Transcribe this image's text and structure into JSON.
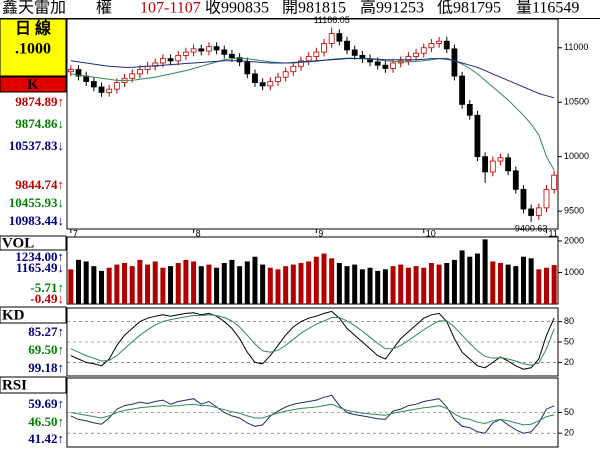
{
  "header": {
    "items": [
      {
        "text": "鑫天雷加",
        "color": "#000000"
      },
      {
        "text": "權",
        "color": "#000000"
      },
      {
        "text": "107-1107",
        "color": "#c00000"
      },
      {
        "text": "收990835",
        "color": "#000000"
      },
      {
        "text": "開981815",
        "color": "#000000"
      },
      {
        "text": "高991253",
        "color": "#000000"
      },
      {
        "text": "低981795",
        "color": "#000000"
      },
      {
        "text": "量116549",
        "color": "#000000"
      }
    ]
  },
  "sidebar": {
    "period": "日 線",
    "interval": ".1000"
  },
  "chart_data": [
    {
      "type": "candlestick",
      "title": "K",
      "up_color": "#c00000",
      "down_color": "#000000",
      "open": [
        10780,
        10800,
        10740,
        10690,
        10640,
        10590,
        10620,
        10680,
        10720,
        10760,
        10800,
        10830,
        10860,
        10900,
        10880,
        10930,
        10960,
        10990,
        10970,
        11010,
        10980,
        10940,
        10910,
        10870,
        10760,
        10680,
        10650,
        10690,
        10730,
        10780,
        10830,
        10880,
        10920,
        10960,
        11040,
        11130,
        11060,
        10980,
        10930,
        10900,
        10870,
        10840,
        10810,
        10860,
        10880,
        10920,
        10950,
        11000,
        11040,
        11060,
        10990,
        10740,
        10480,
        10380,
        10000,
        9860,
        9960,
        9990,
        9870,
        9700,
        9520,
        9460,
        9530,
        9700
      ],
      "high": [
        10840,
        10840,
        10780,
        10730,
        10680,
        10660,
        10720,
        10760,
        10800,
        10840,
        10870,
        10900,
        10940,
        10940,
        10970,
        11000,
        11030,
        11030,
        11050,
        11050,
        11020,
        10980,
        10950,
        10910,
        10800,
        10720,
        10730,
        10770,
        10820,
        10870,
        10920,
        10960,
        11000,
        11080,
        11186.05,
        11170,
        11100,
        11020,
        10970,
        10940,
        10910,
        10880,
        10900,
        10920,
        10960,
        10990,
        11040,
        11080,
        11100,
        11100,
        11030,
        10780,
        10520,
        10420,
        10040,
        10000,
        10030,
        10030,
        9910,
        9740,
        9560,
        9570,
        9740,
        9870
      ],
      "low": [
        10740,
        10700,
        10650,
        10600,
        10550,
        10550,
        10580,
        10640,
        10680,
        10720,
        10760,
        10790,
        10820,
        10840,
        10840,
        10890,
        10920,
        10930,
        10930,
        10940,
        10900,
        10870,
        10830,
        10720,
        10640,
        10610,
        10610,
        10650,
        10690,
        10740,
        10790,
        10840,
        10880,
        10920,
        11000,
        11020,
        10940,
        10890,
        10860,
        10830,
        10800,
        10770,
        10770,
        10820,
        10840,
        10880,
        10910,
        10960,
        11000,
        10950,
        10700,
        10440,
        10340,
        9960,
        9760,
        9820,
        9920,
        9830,
        9660,
        9480,
        9400.63,
        9420,
        9490,
        9660
      ],
      "close": [
        10800,
        10740,
        10690,
        10640,
        10590,
        10620,
        10680,
        10720,
        10760,
        10800,
        10830,
        10860,
        10900,
        10880,
        10930,
        10960,
        10990,
        10970,
        11010,
        10980,
        10940,
        10910,
        10870,
        10760,
        10680,
        10650,
        10690,
        10730,
        10780,
        10830,
        10880,
        10920,
        10960,
        11040,
        11130,
        11060,
        10980,
        10930,
        10900,
        10870,
        10840,
        10810,
        10860,
        10880,
        10920,
        10950,
        11000,
        11040,
        11060,
        10990,
        10740,
        10480,
        10380,
        10000,
        9860,
        9960,
        9990,
        9870,
        9700,
        9520,
        9460,
        9530,
        9700,
        9830
      ],
      "series": [
        {
          "color": "#2e8b57",
          "values": [
            10760,
            10750,
            10740,
            10730,
            10720,
            10710,
            10700,
            10700,
            10700,
            10710,
            10720,
            10730,
            10745,
            10760,
            10775,
            10790,
            10810,
            10830,
            10850,
            10870,
            10890,
            10900,
            10905,
            10900,
            10890,
            10880,
            10870,
            10865,
            10860,
            10860,
            10865,
            10870,
            10875,
            10885,
            10895,
            10900,
            10905,
            10905,
            10900,
            10895,
            10890,
            10880,
            10875,
            10870,
            10870,
            10875,
            10880,
            10890,
            10900,
            10905,
            10880,
            10850,
            10810,
            10760,
            10700,
            10640,
            10580,
            10520,
            10450,
            10380,
            10300,
            10200,
            10000,
            9875
          ]
        },
        {
          "color": "#1f2a8a",
          "values": [
            10880,
            10870,
            10860,
            10850,
            10840,
            10830,
            10825,
            10820,
            10820,
            10825,
            10830,
            10835,
            10840,
            10845,
            10850,
            10855,
            10860,
            10865,
            10870,
            10875,
            10880,
            10880,
            10880,
            10875,
            10870,
            10865,
            10860,
            10860,
            10860,
            10865,
            10870,
            10875,
            10880,
            10885,
            10890,
            10895,
            10900,
            10900,
            10900,
            10900,
            10895,
            10890,
            10890,
            10890,
            10890,
            10890,
            10895,
            10900,
            10900,
            10895,
            10880,
            10860,
            10840,
            10820,
            10790,
            10760,
            10730,
            10700,
            10670,
            10640,
            10610,
            10580,
            10560,
            10540
          ]
        }
      ],
      "ylim": [
        9336,
        11264
      ],
      "yticks": [
        9500,
        10000,
        10500,
        11000
      ],
      "xticks": [
        {
          "value": 0,
          "label": "7"
        },
        {
          "value": 16,
          "label": "8"
        },
        {
          "value": 32,
          "label": "9"
        },
        {
          "value": 46,
          "label": "10"
        },
        {
          "value": 62,
          "label": "11"
        }
      ],
      "readouts": [
        {
          "text": "9874.89↑",
          "color": "#c00000"
        },
        {
          "text": "9874.86↓",
          "color": "#008000"
        },
        {
          "text": "10537.83↓",
          "color": "#000080"
        },
        {
          "text": "9844.74↑",
          "color": "#c00000"
        },
        {
          "text": "10455.93↓",
          "color": "#008000"
        },
        {
          "text": "10983.44↓",
          "color": "#000080"
        }
      ]
    },
    {
      "type": "bar",
      "title": "VOL",
      "values": [
        1100,
        1400,
        1350,
        1200,
        1050,
        1150,
        1250,
        1300,
        1200,
        1400,
        1250,
        1350,
        1150,
        1200,
        1300,
        1400,
        1350,
        1200,
        1250,
        1150,
        1300,
        1400,
        1200,
        1350,
        1500,
        1250,
        1150,
        1100,
        1200,
        1250,
        1300,
        1350,
        1500,
        1600,
        1450,
        1300,
        1200,
        1250,
        1100,
        1150,
        1050,
        1100,
        1200,
        1250,
        1150,
        1200,
        1150,
        1300,
        1250,
        1300,
        1400,
        1700,
        1500,
        1600,
        2050,
        1350,
        1300,
        1250,
        1200,
        1500,
        1450,
        1100,
        1150,
        1234
      ],
      "ylim": [
        0,
        2125
      ],
      "yticks": [
        1000,
        2000
      ],
      "readouts": [
        {
          "text": "1234.00↑",
          "color": "#000080"
        },
        {
          "text": "1165.49↓",
          "color": "#000080"
        },
        {
          "text": "-5.71↑",
          "color": "#008000"
        },
        {
          "text": "-0.49↓",
          "color": "#c00000"
        }
      ]
    },
    {
      "type": "line",
      "title": "KD",
      "series": [
        {
          "color": "#000000",
          "values": [
            30,
            25,
            20,
            18,
            15,
            25,
            45,
            60,
            70,
            80,
            85,
            88,
            90,
            88,
            90,
            92,
            93,
            90,
            92,
            88,
            80,
            70,
            55,
            35,
            20,
            18,
            30,
            45,
            60,
            72,
            80,
            85,
            88,
            92,
            95,
            85,
            70,
            60,
            50,
            40,
            30,
            25,
            40,
            55,
            65,
            75,
            85,
            90,
            92,
            80,
            55,
            35,
            25,
            15,
            12,
            20,
            28,
            22,
            15,
            10,
            12,
            25,
            60,
            85.27
          ]
        },
        {
          "color": "#2e8b57",
          "values": [
            40,
            35,
            30,
            26,
            22,
            23,
            30,
            40,
            50,
            60,
            68,
            75,
            80,
            83,
            85,
            87,
            89,
            89,
            90,
            89,
            86,
            81,
            72,
            60,
            47,
            37,
            35,
            38,
            45,
            54,
            63,
            70,
            76,
            81,
            86,
            86,
            81,
            74,
            66,
            57,
            48,
            40,
            40,
            45,
            52,
            60,
            68,
            75,
            81,
            81,
            72,
            60,
            48,
            37,
            29,
            26,
            27,
            25,
            22,
            18,
            16,
            19,
            40,
            69.5
          ]
        }
      ],
      "ylim": [
        0,
        100
      ],
      "yticks": [
        20,
        50,
        80
      ],
      "grid": true,
      "readouts": [
        {
          "text": "85.27↑",
          "color": "#000080"
        },
        {
          "text": "69.50↑",
          "color": "#008000"
        },
        {
          "text": "99.18↑",
          "color": "#000080"
        }
      ]
    },
    {
      "type": "line",
      "title": "RSI",
      "series": [
        {
          "color": "#203060",
          "values": [
            45,
            40,
            38,
            35,
            33,
            42,
            55,
            60,
            62,
            65,
            63,
            66,
            68,
            62,
            66,
            68,
            70,
            62,
            66,
            58,
            50,
            45,
            42,
            35,
            30,
            32,
            45,
            52,
            58,
            62,
            64,
            66,
            68,
            72,
            75,
            60,
            50,
            47,
            45,
            43,
            41,
            40,
            52,
            55,
            60,
            62,
            66,
            68,
            70,
            58,
            40,
            30,
            28,
            22,
            20,
            35,
            40,
            32,
            25,
            20,
            22,
            35,
            55,
            59.69
          ]
        },
        {
          "color": "#2e8b57",
          "values": [
            50,
            48,
            46,
            44,
            42,
            45,
            50,
            53,
            55,
            57,
            58,
            59,
            60,
            59,
            60,
            61,
            62,
            60,
            60,
            57,
            54,
            51,
            49,
            45,
            42,
            42,
            46,
            49,
            52,
            54,
            56,
            57,
            58,
            60,
            62,
            57,
            53,
            51,
            49,
            48,
            47,
            46,
            49,
            51,
            53,
            55,
            57,
            58,
            60,
            56,
            48,
            42,
            40,
            36,
            34,
            38,
            40,
            38,
            35,
            32,
            33,
            38,
            44,
            46.5
          ]
        }
      ],
      "ylim": [
        0,
        100
      ],
      "yticks": [
        20,
        50
      ],
      "grid": true,
      "readouts": [
        {
          "text": "59.69↑",
          "color": "#000080"
        },
        {
          "text": "46.50↑",
          "color": "#008000"
        },
        {
          "text": "41.42↑",
          "color": "#000080"
        }
      ]
    }
  ]
}
